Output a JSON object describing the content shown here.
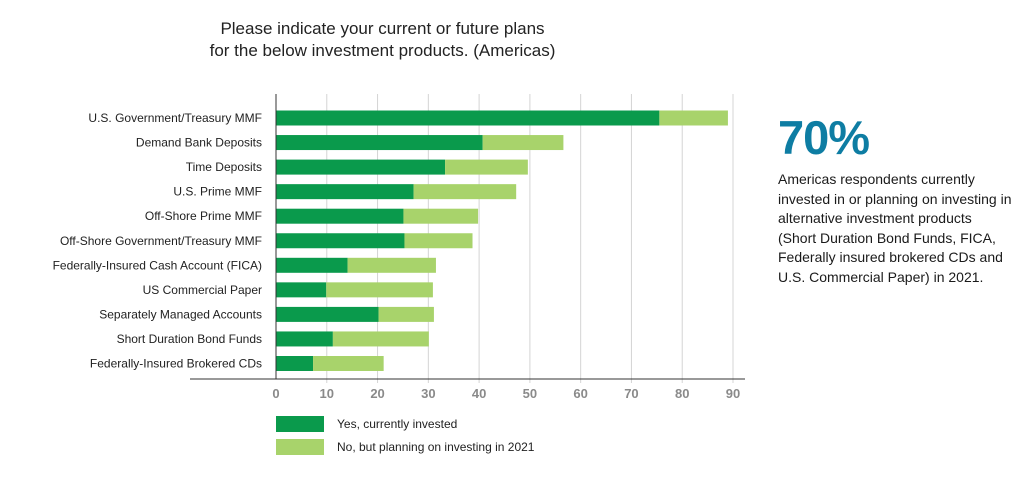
{
  "title_lines": [
    "Please indicate your current or future plans",
    "for the below investment products. (Americas)"
  ],
  "chart_data": {
    "type": "bar",
    "orientation": "horizontal",
    "stacked": true,
    "title": "Please indicate your current or future plans for the below investment products. (Americas)",
    "categories": [
      "U.S. Government/Treasury MMF",
      "Demand Bank Deposits",
      "Time Deposits",
      "U.S. Prime MMF",
      "Off-Shore Prime MMF",
      "Off-Shore Government/Treasury MMF",
      "Federally-Insured Cash Account (FICA)",
      "US Commercial Paper",
      "Separately Managed Accounts",
      "Short Duration Bond Funds",
      "Federally-Insured Brokered CDs"
    ],
    "series": [
      {
        "name": "Yes, currently invested",
        "color": "#0a9a4c",
        "values": [
          75.5,
          40.7,
          33.3,
          27.1,
          25.1,
          25.3,
          14.1,
          9.9,
          20.2,
          11.2,
          7.3
        ]
      },
      {
        "name": "No, but planning on investing in 2021",
        "color": "#a8d36b",
        "values": [
          13.5,
          15.9,
          16.3,
          20.2,
          14.7,
          13.4,
          17.4,
          21.0,
          10.9,
          18.9,
          13.9
        ]
      }
    ],
    "xlim": [
      0,
      90
    ],
    "xticks": [
      0,
      10,
      20,
      30,
      40,
      50,
      60,
      70,
      80,
      90
    ],
    "xlabel": "",
    "ylabel": "",
    "grid": "vertical",
    "legend_position": "bottom-left"
  },
  "legend": [
    {
      "label": "Yes, currently invested",
      "color": "#0a9a4c"
    },
    {
      "label": "No, but planning on investing in 2021",
      "color": "#a8d36b"
    }
  ],
  "callout": {
    "stat": "70%",
    "stat_color": "#0e7da3",
    "text": "Americas respondents currently invested in or planning on investing in alternative investment products (Short Duration Bond Funds, FICA, Federally insured brokered CDs and U.S. Commercial Paper) in 2021."
  },
  "colors": {
    "gridline": "#d4d4d4",
    "axis": "#333333",
    "tick_label": "#8a8a8a"
  }
}
